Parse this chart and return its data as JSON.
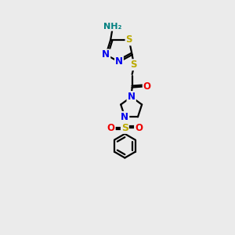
{
  "bg_color": "#ebebeb",
  "atom_colors": {
    "C": "#000000",
    "N": "#0000ee",
    "S": "#bbaa00",
    "O": "#ee0000",
    "H": "#008080"
  },
  "line_color": "#000000",
  "line_width": 1.6,
  "font_size": 8.5
}
